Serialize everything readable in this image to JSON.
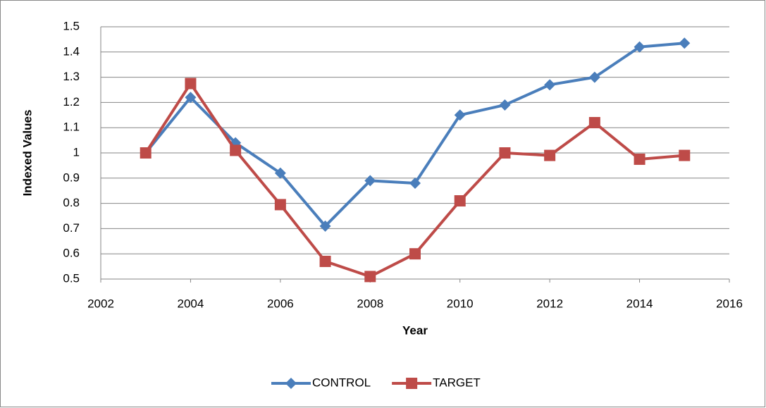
{
  "chart_data": {
    "type": "line",
    "x_label": "Year",
    "y_label": "Indexed Values",
    "x": [
      2003,
      2004,
      2005,
      2006,
      2007,
      2008,
      2009,
      2010,
      2011,
      2012,
      2013,
      2014,
      2015
    ],
    "series": [
      {
        "name": "CONTROL",
        "color": "#4a7ebb",
        "marker": "diamond",
        "values": [
          1.0,
          1.22,
          1.04,
          0.92,
          0.71,
          0.89,
          0.88,
          1.15,
          1.19,
          1.27,
          1.3,
          1.42,
          1.435
        ]
      },
      {
        "name": "TARGET",
        "color": "#be4b48",
        "marker": "square",
        "values": [
          1.0,
          1.275,
          1.01,
          0.795,
          0.57,
          0.51,
          0.6,
          0.81,
          1.0,
          0.99,
          1.12,
          0.975,
          0.99
        ]
      }
    ],
    "xlim": [
      2002,
      2016
    ],
    "xticks": [
      2002,
      2004,
      2006,
      2008,
      2010,
      2012,
      2014,
      2016
    ],
    "ylim": [
      0.5,
      1.5
    ],
    "yticks": [
      0.5,
      0.6,
      0.7,
      0.8,
      0.9,
      1,
      1.1,
      1.2,
      1.3,
      1.4,
      1.5
    ],
    "grid": true,
    "legend": "bottom"
  }
}
